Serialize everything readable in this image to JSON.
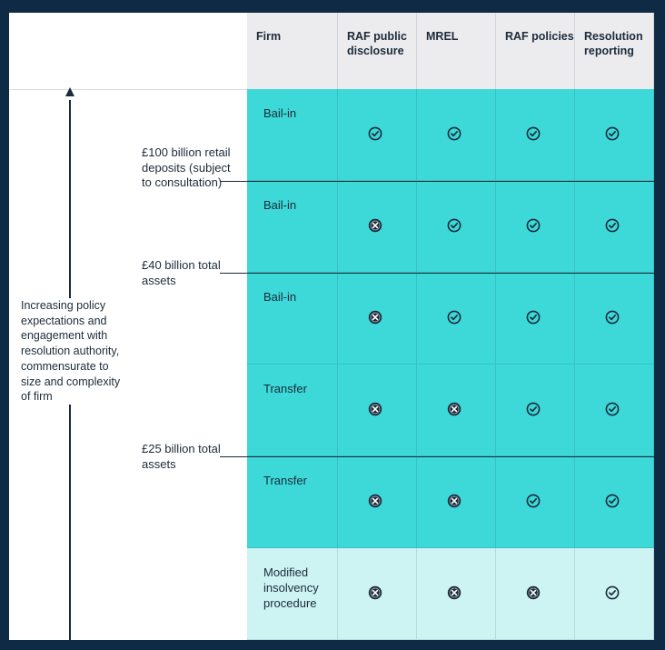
{
  "header": {
    "columns": [
      "Firm",
      "RAF public disclosure",
      "MREL",
      "RAF policies",
      "Resolution reporting"
    ]
  },
  "left": {
    "policy_text": "Increasing policy expectations and engagement with resolution authority, commensurate to size and complexity of firm",
    "thresholds": [
      "£100 billion retail deposits (subject to consultation)",
      "£40 billion total assets",
      "£25 billion total assets"
    ]
  },
  "rows": [
    {
      "firm": "Bail-in",
      "tier": "teal",
      "marks": [
        "check",
        "check",
        "check",
        "check"
      ]
    },
    {
      "firm": "Bail-in",
      "tier": "teal",
      "marks": [
        "cross",
        "check",
        "check",
        "check"
      ]
    },
    {
      "firm": "Bail-in",
      "tier": "teal",
      "marks": [
        "cross",
        "check",
        "check",
        "check"
      ]
    },
    {
      "firm": "Transfer",
      "tier": "teal",
      "marks": [
        "cross",
        "cross",
        "check",
        "check"
      ]
    },
    {
      "firm": "Transfer",
      "tier": "teal",
      "marks": [
        "cross",
        "cross",
        "check",
        "check"
      ]
    },
    {
      "firm": "Modified insolvency procedure",
      "tier": "pale",
      "marks": [
        "cross",
        "cross",
        "cross",
        "check"
      ]
    }
  ],
  "colors": {
    "teal": "#3dd8d8",
    "pale": "#cdf3f3",
    "ink": "#1b2b3a",
    "border": "#0f2a44"
  }
}
